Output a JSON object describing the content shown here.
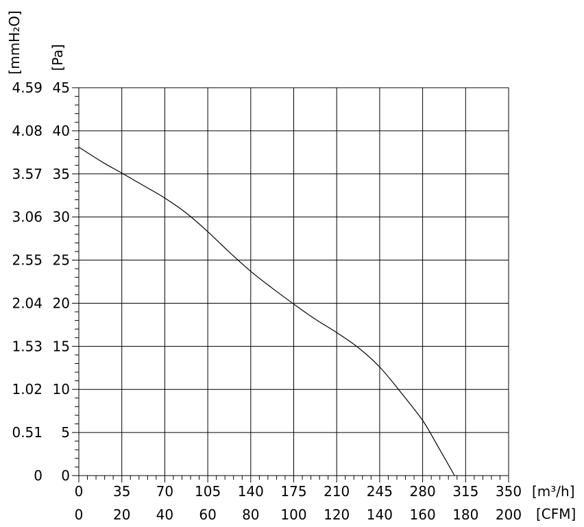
{
  "chart_data": {
    "type": "line",
    "units": {
      "x_primary": "[m³/h]",
      "x_secondary": "[CFM]",
      "y_primary": "[Pa]",
      "y_secondary": "[mmH₂O]"
    },
    "xlim": [
      0,
      350
    ],
    "ylim": [
      0,
      45
    ],
    "grid": true,
    "x_ticks": [
      "0",
      "35",
      "70",
      "105",
      "140",
      "175",
      "210",
      "245",
      "280",
      "315",
      "350"
    ],
    "x_ticks_cfm": [
      "0",
      "20",
      "40",
      "60",
      "80",
      "100",
      "120",
      "140",
      "160",
      "180",
      "200"
    ],
    "y_ticks": [
      "0",
      "5",
      "10",
      "15",
      "20",
      "25",
      "30",
      "35",
      "40",
      "45"
    ],
    "y_ticks_mmh2o": [
      "0",
      "0.51",
      "1.02",
      "1.53",
      "2.04",
      "2.55",
      "3.06",
      "3.57",
      "4.08",
      "4.59"
    ],
    "series": [
      {
        "x": [
          0,
          20,
          35,
          52,
          70,
          88,
          105,
          122,
          140,
          157,
          175,
          192,
          210,
          228,
          245,
          262,
          280,
          292,
          306
        ],
        "y": [
          38.1,
          36.3,
          35.1,
          33.7,
          32.2,
          30.4,
          28.3,
          26.0,
          23.7,
          21.8,
          19.9,
          18.2,
          16.6,
          14.8,
          12.6,
          9.7,
          6.4,
          3.5,
          0
        ]
      }
    ]
  }
}
